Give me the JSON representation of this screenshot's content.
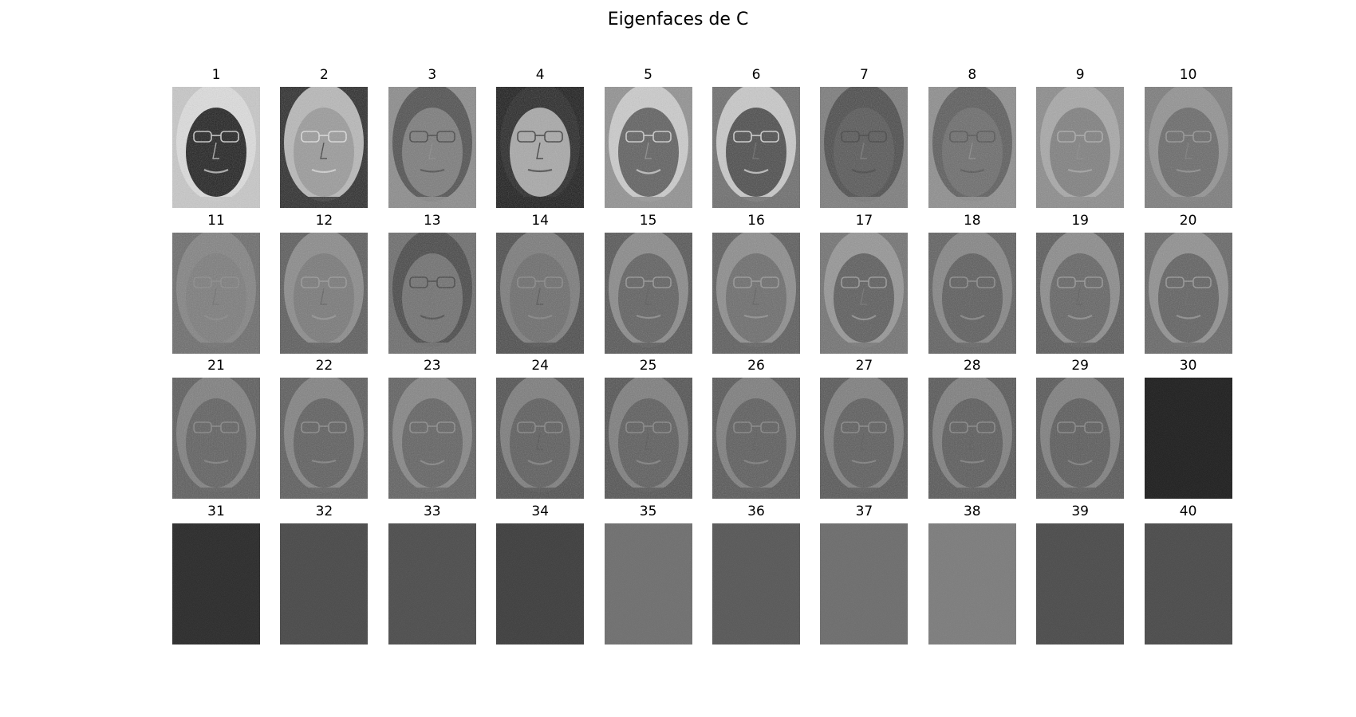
{
  "figure": {
    "title": "Eigenfaces de C"
  },
  "eigenfaces": [
    {
      "label": "1",
      "kind": "face",
      "base": "#5a5a5a",
      "bg": "#c8c8c8",
      "face": "#1e1e1e",
      "hair": "#e6e6e6"
    },
    {
      "label": "2",
      "kind": "face",
      "base": "#555555",
      "bg": "#2a2a2a",
      "face": "#9a9a9a",
      "hair": "#e8e8e8"
    },
    {
      "label": "3",
      "kind": "face",
      "base": "#6a6a6a",
      "bg": "#8a8a8a",
      "face": "#7a7a7a",
      "hair": "#3a3a3a"
    },
    {
      "label": "4",
      "kind": "face",
      "base": "#606060",
      "bg": "#1a1a1a",
      "face": "#a8a8a8",
      "hair": "#2a2a2a"
    },
    {
      "label": "5",
      "kind": "face",
      "base": "#707070",
      "bg": "#909090",
      "face": "#5e5e5e",
      "hair": "#e0e0e0"
    },
    {
      "label": "6",
      "kind": "face",
      "base": "#606060",
      "bg": "#6c6c6c",
      "face": "#4a4a4a",
      "hair": "#e8e8e8"
    },
    {
      "label": "7",
      "kind": "face",
      "base": "#606060",
      "bg": "#7a7a7a",
      "face": "#555555",
      "hair": "#3a3a3a"
    },
    {
      "label": "8",
      "kind": "face",
      "base": "#6a6a6a",
      "bg": "#8c8c8c",
      "face": "#6a6a6a",
      "hair": "#4a4a4a"
    },
    {
      "label": "9",
      "kind": "face",
      "base": "#6a6a6a",
      "bg": "#8a8a8a",
      "face": "#7e7e7e",
      "hair": "#b0b0b0"
    },
    {
      "label": "10",
      "kind": "face",
      "base": "#6a6a6a",
      "bg": "#7a7a7a",
      "face": "#686868",
      "hair": "#9a9a9a"
    },
    {
      "label": "11",
      "kind": "face",
      "base": "#606060",
      "bg": "#6a6a6a",
      "face": "#7a7a7a",
      "hair": "#8a8a8a"
    },
    {
      "label": "12",
      "kind": "face",
      "base": "#5a5a5a",
      "bg": "#5a5a5a",
      "face": "#777777",
      "hair": "#9a9a9a"
    },
    {
      "label": "13",
      "kind": "face",
      "base": "#5a5a5a",
      "bg": "#6a6a6a",
      "face": "#6e6e6e",
      "hair": "#3a3a3a"
    },
    {
      "label": "14",
      "kind": "face",
      "base": "#5a5a5a",
      "bg": "#4a4a4a",
      "face": "#6a6a6a",
      "hair": "#8a8a8a"
    },
    {
      "label": "15",
      "kind": "face",
      "base": "#5a5a5a",
      "bg": "#545454",
      "face": "#5e5e5e",
      "hair": "#9a9a9a"
    },
    {
      "label": "16",
      "kind": "face",
      "base": "#5a5a5a",
      "bg": "#5a5a5a",
      "face": "#6a6a6a",
      "hair": "#9c9c9c"
    },
    {
      "label": "17",
      "kind": "face",
      "base": "#606060",
      "bg": "#707070",
      "face": "#5a5a5a",
      "hair": "#a0a0a0"
    },
    {
      "label": "18",
      "kind": "face",
      "base": "#5a5a5a",
      "bg": "#5e5e5e",
      "face": "#5a5a5a",
      "hair": "#909090"
    },
    {
      "label": "19",
      "kind": "face",
      "base": "#5a5a5a",
      "bg": "#585858",
      "face": "#626262",
      "hair": "#9a9a9a"
    },
    {
      "label": "20",
      "kind": "face",
      "base": "#5a5a5a",
      "bg": "#646464",
      "face": "#5e5e5e",
      "hair": "#9c9c9c"
    },
    {
      "label": "21",
      "kind": "face",
      "base": "#5a5a5a",
      "bg": "#5a5a5a",
      "face": "#5e5e5e",
      "hair": "#8a8a8a"
    },
    {
      "label": "22",
      "kind": "face",
      "base": "#5a5a5a",
      "bg": "#5a5a5a",
      "face": "#5c5c5c",
      "hair": "#8e8e8e"
    },
    {
      "label": "23",
      "kind": "face",
      "base": "#5a5a5a",
      "bg": "#5e5e5e",
      "face": "#606060",
      "hair": "#909090"
    },
    {
      "label": "24",
      "kind": "face",
      "base": "#555555",
      "bg": "#4e4e4e",
      "face": "#5a5a5a",
      "hair": "#8a8a8a"
    },
    {
      "label": "25",
      "kind": "face",
      "base": "#555555",
      "bg": "#505050",
      "face": "#5a5a5a",
      "hair": "#8a8a8a"
    },
    {
      "label": "26",
      "kind": "face",
      "base": "#555555",
      "bg": "#545454",
      "face": "#5a5a5a",
      "hair": "#888888"
    },
    {
      "label": "27",
      "kind": "face",
      "base": "#555555",
      "bg": "#545454",
      "face": "#5a5a5a",
      "hair": "#8a8a8a"
    },
    {
      "label": "28",
      "kind": "face",
      "base": "#555555",
      "bg": "#545454",
      "face": "#585858",
      "hair": "#8a8a8a"
    },
    {
      "label": "29",
      "kind": "face",
      "base": "#555555",
      "bg": "#545454",
      "face": "#585858",
      "hair": "#8a8a8a"
    },
    {
      "label": "30",
      "kind": "noise",
      "base": "#1b1b1b"
    },
    {
      "label": "31",
      "kind": "noise",
      "base": "#262626"
    },
    {
      "label": "32",
      "kind": "noise",
      "base": "#464646"
    },
    {
      "label": "33",
      "kind": "noise",
      "base": "#4a4a4a"
    },
    {
      "label": "34",
      "kind": "noise",
      "base": "#3a3a3a"
    },
    {
      "label": "35",
      "kind": "noise",
      "base": "#6c6c6c"
    },
    {
      "label": "36",
      "kind": "noise",
      "base": "#545454"
    },
    {
      "label": "37",
      "kind": "noise",
      "base": "#6a6a6a"
    },
    {
      "label": "38",
      "kind": "noise",
      "base": "#7a7a7a"
    },
    {
      "label": "39",
      "kind": "noise",
      "base": "#484848"
    },
    {
      "label": "40",
      "kind": "noise",
      "base": "#474747"
    }
  ]
}
